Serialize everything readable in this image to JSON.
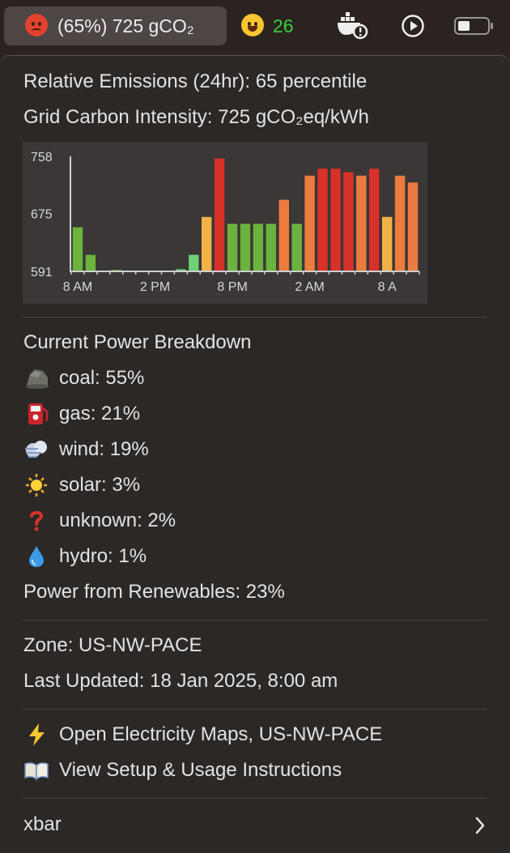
{
  "menubar": {
    "emission_item": "(65%) 725 gCO₂",
    "face_count": "26"
  },
  "panel": {
    "relative_emissions": "Relative Emissions (24hr): 65 percentile",
    "carbon_intensity": "Grid Carbon Intensity: 725 gCO₂eq/kWh",
    "breakdown_title": "Current Power Breakdown",
    "breakdown": [
      {
        "icon": "coal-icon",
        "label": "coal: 55%"
      },
      {
        "icon": "fuel-pump-icon",
        "label": "gas: 21%"
      },
      {
        "icon": "wind-icon",
        "label": "wind: 19%"
      },
      {
        "icon": "sun-icon",
        "label": "solar: 3%"
      },
      {
        "icon": "question-mark-icon",
        "label": "unknown: 2%"
      },
      {
        "icon": "water-drop-icon",
        "label": "hydro: 1%"
      }
    ],
    "renewables": "Power from Renewables: 23%",
    "zone": "Zone: US-NW-PACE",
    "last_updated": "Last Updated: 18 Jan 2025, 8:00 am",
    "open_maps": "Open Electricity Maps, US-NW-PACE",
    "view_setup": "View Setup & Usage Instructions",
    "xbar": "xbar"
  },
  "colors": {
    "green_dark": "#6bb33e",
    "green_light": "#6fd27a",
    "yellow": "#f2b146",
    "orange": "#ec7c3e",
    "red": "#d8312a",
    "face_count": "#37d03d"
  },
  "chart_data": {
    "type": "bar",
    "x_tick_labels": [
      "8 AM",
      "2 PM",
      "8 PM",
      "2 AM",
      "8 A"
    ],
    "y_tick_labels": [
      "758",
      "675",
      "591"
    ],
    "ylim": [
      591,
      758
    ],
    "values": [
      655,
      615,
      592,
      593,
      592,
      592,
      592,
      592,
      594,
      615,
      670,
      755,
      660,
      660,
      660,
      660,
      695,
      660,
      730,
      740,
      740,
      735,
      730,
      740,
      670,
      730,
      720
    ],
    "bar_colors": [
      "green_dark",
      "green_dark",
      "green_dark",
      "green_dark",
      "green_dark",
      "green_dark",
      "green_dark",
      "green_light",
      "green_light",
      "green_light",
      "yellow",
      "red",
      "green_dark",
      "green_dark",
      "green_dark",
      "green_dark",
      "orange",
      "green_dark",
      "orange",
      "red",
      "red",
      "red",
      "orange",
      "red",
      "yellow",
      "orange",
      "orange"
    ]
  }
}
